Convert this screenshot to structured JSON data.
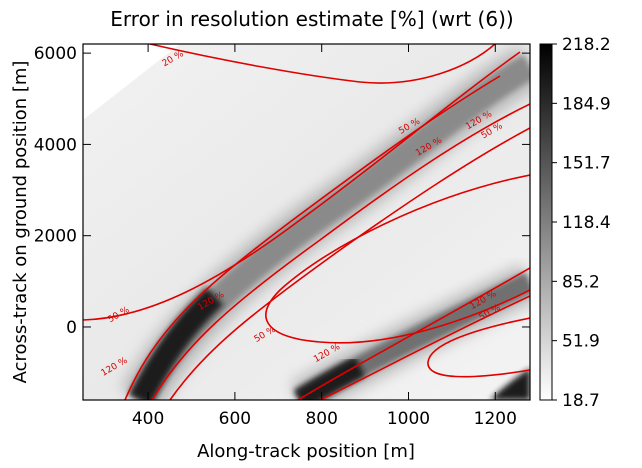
{
  "chart_data": {
    "type": "heatmap",
    "title": "Error in resolution estimate [%] (wrt (6))",
    "xlabel": "Along-track position [m]",
    "ylabel": "Across-track on ground position [m]",
    "xlim": [
      250,
      1280
    ],
    "ylim": [
      -1600,
      6200
    ],
    "x_ticks": [
      400,
      600,
      800,
      1000,
      1200
    ],
    "y_ticks": [
      0,
      2000,
      4000,
      6000
    ],
    "colorbar": {
      "min": 18.7,
      "max": 218.2,
      "ticks": [
        "218.2",
        "184.9",
        "151.7",
        "118.4",
        "85.2",
        "51.9",
        "18.7"
      ],
      "colormap": "white-to-black"
    },
    "contour_color": "#e00000",
    "contour_levels": [
      {
        "label": "20 %",
        "value": 20
      },
      {
        "label": "50 %",
        "value": 50
      },
      {
        "label": "120 %",
        "value": 120
      }
    ],
    "contour_labels": [
      {
        "text": "20 %",
        "x": 460,
        "y": 5830
      },
      {
        "text": "50 %",
        "x": 1005,
        "y": 4350
      },
      {
        "text": "120 %",
        "x": 1050,
        "y": 3900
      },
      {
        "text": "120 %",
        "x": 1165,
        "y": 4480
      },
      {
        "text": "50 %",
        "x": 1195,
        "y": 4250
      },
      {
        "text": "50 %",
        "x": 335,
        "y": 220
      },
      {
        "text": "120 %",
        "x": 548,
        "y": 520
      },
      {
        "text": "50 %",
        "x": 672,
        "y": -210
      },
      {
        "text": "120 %",
        "x": 325,
        "y": -920
      },
      {
        "text": "120 %",
        "x": 815,
        "y": -620
      },
      {
        "text": "120 %",
        "x": 1175,
        "y": 540
      },
      {
        "text": "50 %",
        "x": 1190,
        "y": 270
      }
    ]
  }
}
